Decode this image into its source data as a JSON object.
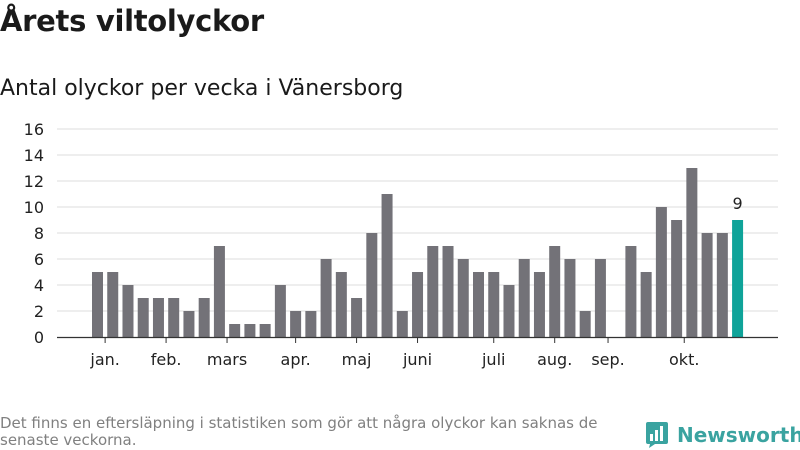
{
  "header": {
    "title": "Årets viltolyckor",
    "subtitle": "Antal olyckor per vecka i Vänersborg"
  },
  "footer": {
    "note": "Det finns en eftersläpning i statistiken som gör att några olyckor kan saknas de senaste veckorna.",
    "brand": "Newsworthy"
  },
  "colors": {
    "bar": "#737278",
    "highlight": "#0fa399",
    "grid": "#dcdcdc",
    "axis": "#333333",
    "brand": "#3aa3a0"
  },
  "chart_data": {
    "type": "bar",
    "title": "Antal olyckor per vecka i Vänersborg",
    "xlabel": "",
    "ylabel": "",
    "ylim": [
      0,
      16
    ],
    "yticks": [
      0,
      2,
      4,
      6,
      8,
      10,
      12,
      14,
      16
    ],
    "grid": true,
    "weeks": [
      2,
      3,
      4,
      5,
      6,
      7,
      8,
      9,
      10,
      11,
      12,
      13,
      14,
      15,
      16,
      17,
      18,
      19,
      20,
      21,
      22,
      23,
      24,
      25,
      26,
      27,
      28,
      29,
      30,
      31,
      32,
      33,
      34,
      35,
      36,
      37,
      38,
      39,
      40,
      41,
      42,
      43,
      44
    ],
    "values": [
      5,
      5,
      4,
      3,
      3,
      3,
      2,
      3,
      7,
      1,
      1,
      1,
      4,
      2,
      2,
      6,
      5,
      3,
      8,
      11,
      2,
      5,
      7,
      7,
      6,
      5,
      5,
      4,
      6,
      5,
      7,
      6,
      2,
      6,
      0,
      7,
      5,
      10,
      9,
      13,
      8,
      8,
      9
    ],
    "highlight_index": 42,
    "highlight_label": "9",
    "month_labels": [
      {
        "label": "jan.",
        "week": 2.5
      },
      {
        "label": "feb.",
        "week": 6.5
      },
      {
        "label": "mars",
        "week": 10.5
      },
      {
        "label": "apr.",
        "week": 15
      },
      {
        "label": "maj",
        "week": 19
      },
      {
        "label": "juni",
        "week": 23
      },
      {
        "label": "juli",
        "week": 28
      },
      {
        "label": "aug.",
        "week": 32
      },
      {
        "label": "sep.",
        "week": 35.5
      },
      {
        "label": "okt.",
        "week": 40.5
      }
    ]
  }
}
